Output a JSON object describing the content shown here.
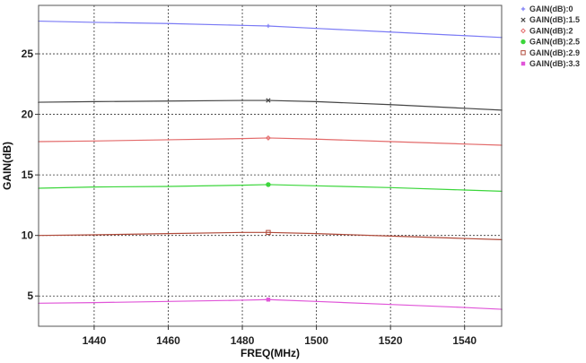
{
  "chart_data": {
    "type": "line",
    "title": "",
    "xlabel": "FREQ(MHz)",
    "ylabel": "GAIN(dB)",
    "xlim": [
      1425,
      1550
    ],
    "ylim": [
      2.5,
      29
    ],
    "xticks": [
      1440,
      1460,
      1480,
      1500,
      1520,
      1540
    ],
    "yticks": [
      5,
      10,
      15,
      20,
      25
    ],
    "grid": true,
    "legend_position": "top-right",
    "x": [
      1425,
      1440,
      1460,
      1480,
      1487,
      1500,
      1520,
      1540,
      1550
    ],
    "series": [
      {
        "name": "GAIN(dB):0",
        "color": "#7a7af5",
        "marker": "plus",
        "values": [
          27.7,
          27.6,
          27.5,
          27.35,
          27.3,
          27.1,
          26.8,
          26.5,
          26.35
        ]
      },
      {
        "name": "GAIN(dB):1.5",
        "color": "#444444",
        "marker": "x",
        "values": [
          21.0,
          21.05,
          21.1,
          21.15,
          21.15,
          21.05,
          20.8,
          20.5,
          20.35
        ]
      },
      {
        "name": "GAIN(dB):2",
        "color": "#e36a6a",
        "marker": "diamond",
        "values": [
          17.75,
          17.8,
          17.9,
          18.0,
          18.05,
          17.95,
          17.75,
          17.55,
          17.45
        ]
      },
      {
        "name": "GAIN(dB):2.5",
        "color": "#3bd63b",
        "marker": "circle",
        "values": [
          13.9,
          14.0,
          14.05,
          14.15,
          14.2,
          14.1,
          13.95,
          13.75,
          13.65
        ]
      },
      {
        "name": "GAIN(dB):2.9",
        "color": "#b04a3a",
        "marker": "square",
        "values": [
          10.0,
          10.05,
          10.15,
          10.25,
          10.25,
          10.15,
          9.95,
          9.75,
          9.65
        ]
      },
      {
        "name": "GAIN(dB):3.3",
        "color": "#e055d8",
        "marker": "filled-square",
        "values": [
          4.4,
          4.45,
          4.55,
          4.65,
          4.7,
          4.55,
          4.3,
          4.05,
          3.9
        ]
      }
    ]
  }
}
